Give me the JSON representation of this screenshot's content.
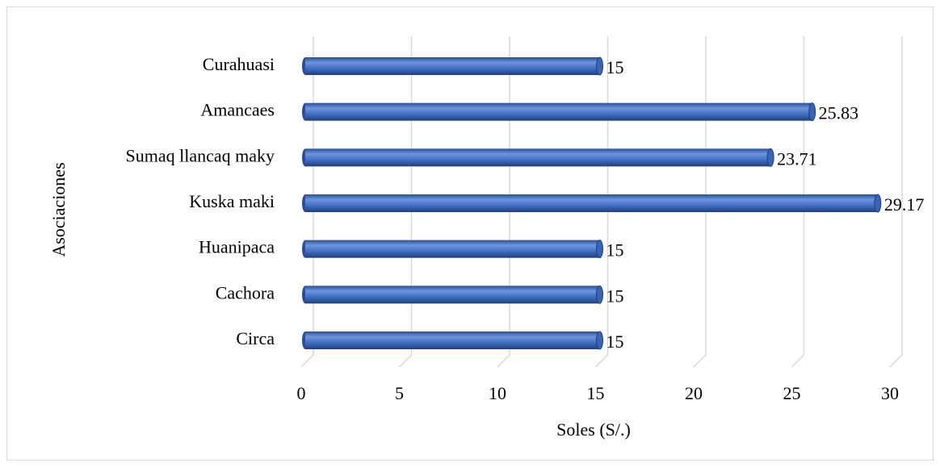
{
  "chart_data": {
    "type": "bar",
    "orientation": "horizontal",
    "x_label": "Soles (S/.)",
    "y_label": "Asociaciones",
    "categories": [
      "Curahuasi",
      "Amancaes",
      "Sumaq llancaq maky",
      "Kuska maki",
      "Huanipaca",
      "Cachora",
      "Circa"
    ],
    "values": [
      15,
      25.83,
      23.71,
      29.17,
      15,
      15,
      15
    ],
    "color": "#4472c4",
    "xlim": [
      0,
      30
    ],
    "xticks": [
      0,
      5,
      10,
      15,
      20,
      25,
      30
    ],
    "grid": true
  }
}
